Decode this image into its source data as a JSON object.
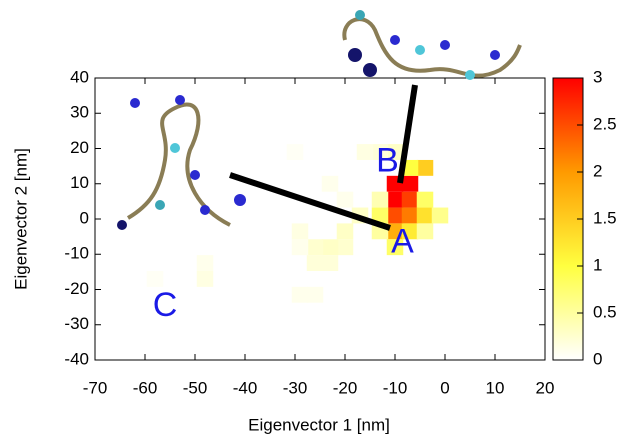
{
  "chart_data": {
    "type": "heatmap",
    "xlabel": "Eigenvector 1 [nm]",
    "ylabel": "Eigenvector 2 [nm]",
    "xlim": [
      -70,
      20
    ],
    "xticks": [
      -70,
      -60,
      -50,
      -40,
      -30,
      -20,
      -10,
      0,
      10,
      20
    ],
    "ylim": [
      -40,
      40
    ],
    "yticks": [
      -40,
      -30,
      -20,
      -10,
      0,
      10,
      20,
      30,
      40
    ],
    "clim": [
      0,
      3
    ],
    "cticks": [
      0,
      0.5,
      1,
      1.5,
      2,
      2.5,
      3
    ],
    "colormap": [
      "#ffffff",
      "#ffff40",
      "#ff9a00",
      "#ff0000"
    ],
    "bin_size": [
      3.3,
      4.5
    ],
    "cells": [
      {
        "x": -10,
        "y": 10,
        "value": 3
      },
      {
        "x": -7,
        "y": 10,
        "value": 3
      },
      {
        "x": -10,
        "y": 5.5,
        "value": 3
      },
      {
        "x": -7,
        "y": 5.5,
        "value": 2.6
      },
      {
        "x": -10,
        "y": 1,
        "value": 2.5
      },
      {
        "x": -7,
        "y": 1,
        "value": 2.2
      },
      {
        "x": -4,
        "y": 1,
        "value": 1.3
      },
      {
        "x": -10,
        "y": -3.5,
        "value": 1.8
      },
      {
        "x": -7,
        "y": -3.5,
        "value": 1.2
      },
      {
        "x": -10,
        "y": -8,
        "value": 0.8
      },
      {
        "x": -4,
        "y": 14.5,
        "value": 1.5
      },
      {
        "x": -7,
        "y": 14.5,
        "value": 1.0
      },
      {
        "x": -4,
        "y": 5.5,
        "value": 0.8
      },
      {
        "x": -1,
        "y": 1,
        "value": 0.6
      },
      {
        "x": -4,
        "y": -3.5,
        "value": 0.5
      },
      {
        "x": -13,
        "y": 1,
        "value": 0.8
      },
      {
        "x": -13,
        "y": -3.5,
        "value": 0.5
      },
      {
        "x": -13,
        "y": 5.5,
        "value": 0.4
      },
      {
        "x": -10,
        "y": 19,
        "value": 0.3
      },
      {
        "x": -13,
        "y": 19,
        "value": 0.2
      },
      {
        "x": -16,
        "y": 19,
        "value": 0.15
      },
      {
        "x": -17,
        "y": 1,
        "value": 0.3
      },
      {
        "x": -20,
        "y": -3.5,
        "value": 0.3
      },
      {
        "x": -20,
        "y": -8,
        "value": 0.25
      },
      {
        "x": -23,
        "y": -8,
        "value": 0.3
      },
      {
        "x": -26,
        "y": -8,
        "value": 0.25
      },
      {
        "x": -23,
        "y": -12.5,
        "value": 0.2
      },
      {
        "x": -26,
        "y": -12.5,
        "value": 0.2
      },
      {
        "x": -29,
        "y": -3.5,
        "value": 0.15
      },
      {
        "x": -29,
        "y": -8,
        "value": 0.1
      },
      {
        "x": -26,
        "y": -21.5,
        "value": 0.1
      },
      {
        "x": -29,
        "y": -21.5,
        "value": 0.1
      },
      {
        "x": -23,
        "y": 10,
        "value": 0.1
      },
      {
        "x": -20,
        "y": 5.5,
        "value": 0.1
      },
      {
        "x": -48,
        "y": -17,
        "value": 0.15
      },
      {
        "x": -48,
        "y": -12.5,
        "value": 0.1
      },
      {
        "x": -58,
        "y": -17,
        "value": 0.05
      },
      {
        "x": -30,
        "y": 19,
        "value": 0.05
      }
    ],
    "annotations": [
      {
        "text": "A",
        "x": -8.5,
        "y": -7
      },
      {
        "text": "B",
        "x": -11.5,
        "y": 16
      },
      {
        "text": "C",
        "x": -56,
        "y": -25
      }
    ],
    "annotation_color": "#1a1ae6"
  }
}
